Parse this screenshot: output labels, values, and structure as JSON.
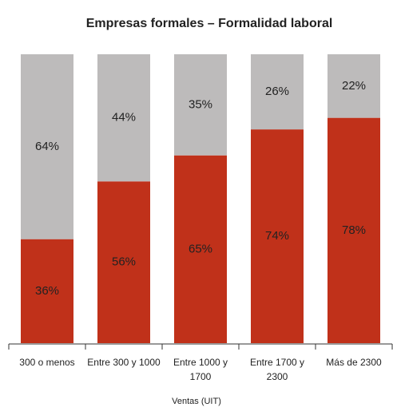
{
  "chart_data": {
    "type": "bar",
    "stacked": true,
    "title": "Empresas formales – Formalidad laboral",
    "x_label": "Ventas (UIT)",
    "categories": [
      "300 o menos",
      "Entre 300 y 1000",
      "Entre 1000 y 1700",
      "Entre 1700 y 2300",
      "Más de 2300"
    ],
    "series": [
      {
        "color": "#c0311a",
        "values": [
          36,
          56,
          65,
          74,
          78
        ],
        "value_labels": [
          "36%",
          "56%",
          "65%",
          "74%",
          "78%"
        ]
      },
      {
        "color": "#bdbbbb",
        "values": [
          64,
          44,
          35,
          26,
          22
        ],
        "value_labels": [
          "64%",
          "44%",
          "35%",
          "26%",
          "22%"
        ]
      }
    ],
    "ylim": [
      0,
      100
    ]
  }
}
